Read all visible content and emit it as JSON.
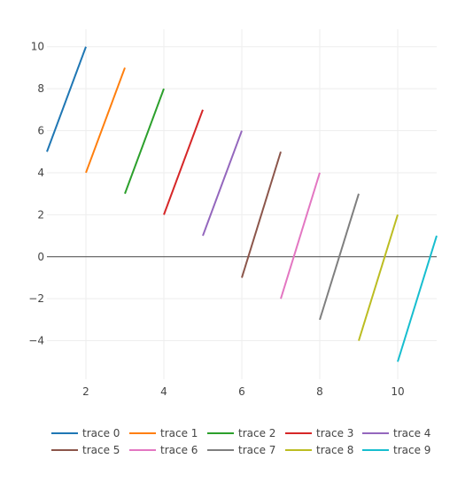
{
  "chart_data": {
    "type": "line",
    "title": "",
    "xlabel": "",
    "ylabel": "",
    "xlim": [
      1,
      11
    ],
    "ylim": [
      -5.833,
      10.833
    ],
    "x_ticks": [
      2,
      4,
      6,
      8,
      10
    ],
    "y_ticks": [
      -4,
      -2,
      0,
      2,
      4,
      6,
      8,
      10
    ],
    "grid": true,
    "zero_line": true,
    "legend_position": "bottom",
    "series": [
      {
        "name": "trace 0",
        "color": "#1f77b4",
        "x": [
          1,
          2
        ],
        "y": [
          5,
          10
        ]
      },
      {
        "name": "trace 1",
        "color": "#ff7f0e",
        "x": [
          2,
          3
        ],
        "y": [
          4,
          9
        ]
      },
      {
        "name": "trace 2",
        "color": "#2ca02c",
        "x": [
          3,
          4
        ],
        "y": [
          3,
          8
        ]
      },
      {
        "name": "trace 3",
        "color": "#d62728",
        "x": [
          4,
          5
        ],
        "y": [
          2,
          7
        ]
      },
      {
        "name": "trace 4",
        "color": "#9467bd",
        "x": [
          5,
          6
        ],
        "y": [
          1,
          6
        ]
      },
      {
        "name": "trace 5",
        "color": "#8c564b",
        "x": [
          6,
          7
        ],
        "y": [
          -1,
          5
        ]
      },
      {
        "name": "trace 6",
        "color": "#e377c2",
        "x": [
          7,
          8
        ],
        "y": [
          -2,
          4
        ]
      },
      {
        "name": "trace 7",
        "color": "#7f7f7f",
        "x": [
          8,
          9
        ],
        "y": [
          -3,
          3
        ]
      },
      {
        "name": "trace 8",
        "color": "#bcbd22",
        "x": [
          9,
          10
        ],
        "y": [
          -4,
          2
        ]
      },
      {
        "name": "trace 9",
        "color": "#17becf",
        "x": [
          10,
          11
        ],
        "y": [
          -5,
          1
        ]
      }
    ]
  }
}
